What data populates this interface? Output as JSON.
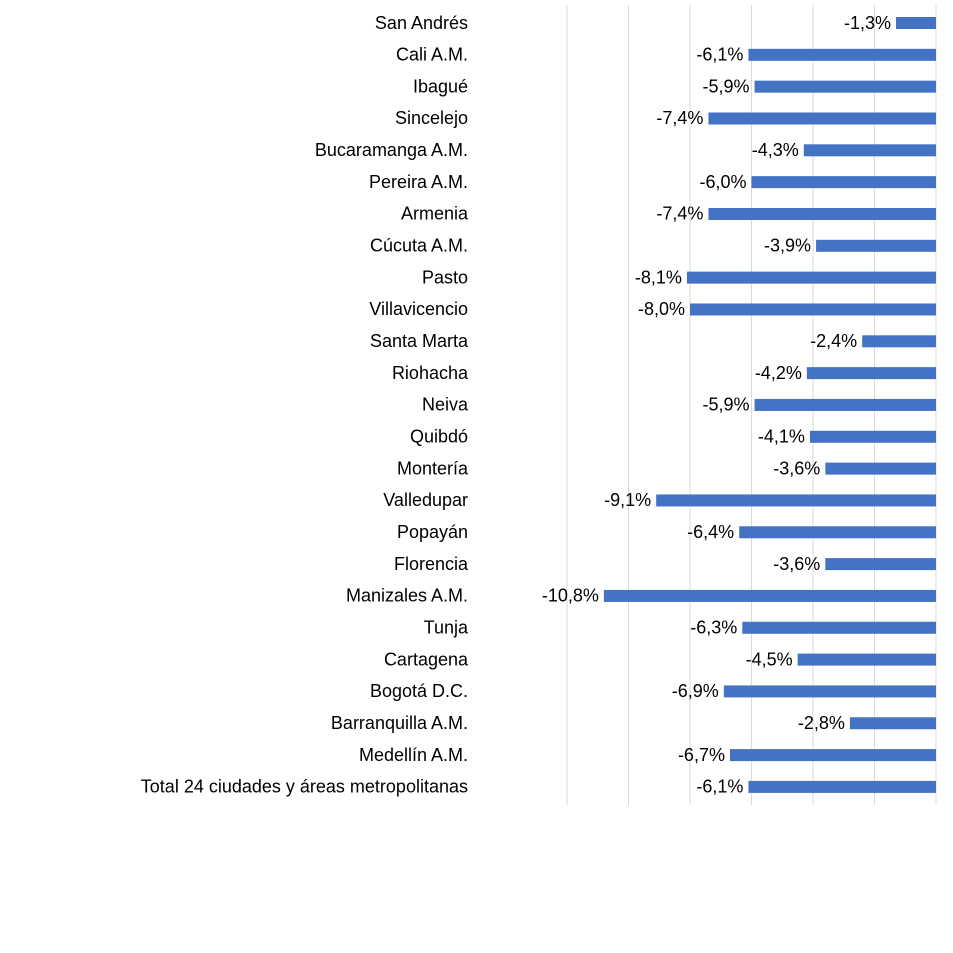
{
  "chart_data": {
    "type": "barh",
    "categories": [
      "San Andrés",
      "Cali A.M.",
      "Ibagué",
      "Sincelejo",
      "Bucaramanga A.M.",
      "Pereira A.M.",
      "Armenia",
      "Cúcuta A.M.",
      "Pasto",
      "Villavicencio",
      "Santa Marta",
      "Riohacha",
      "Neiva",
      "Quibdó",
      "Montería",
      "Valledupar",
      "Popayán",
      "Florencia",
      "Manizales A.M.",
      "Tunja",
      "Cartagena",
      "Bogotá D.C.",
      "Barranquilla A.M.",
      "Medellín A.M.",
      "Total 24 ciudades y áreas metropolitanas"
    ],
    "values": [
      -1.3,
      -6.1,
      -5.9,
      -7.4,
      -4.3,
      -6.0,
      -7.4,
      -3.9,
      -8.1,
      -8.0,
      -2.4,
      -4.2,
      -5.9,
      -4.1,
      -3.6,
      -9.1,
      -6.4,
      -3.6,
      -10.8,
      -6.3,
      -4.5,
      -6.9,
      -2.8,
      -6.7,
      -6.1
    ],
    "value_labels": [
      "-1,3%",
      "-6,1%",
      "-5,9%",
      "-7,4%",
      "-4,3%",
      "-6,0%",
      "-7,4%",
      "-3,9%",
      "-8,1%",
      "-8,0%",
      "-2,4%",
      "-4,2%",
      "-5,9%",
      "-4,1%",
      "-3,6%",
      "-9,1%",
      "-6,4%",
      "-3,6%",
      "-10,8%",
      "-6,3%",
      "-4,5%",
      "-6,9%",
      "-2,8%",
      "-6,7%",
      "-6,1%"
    ],
    "color": "#4472c4",
    "xlim": [
      -12,
      0
    ],
    "xticks": [
      -12,
      -10,
      -8,
      -6,
      -4,
      -2,
      0
    ],
    "grid": true
  }
}
